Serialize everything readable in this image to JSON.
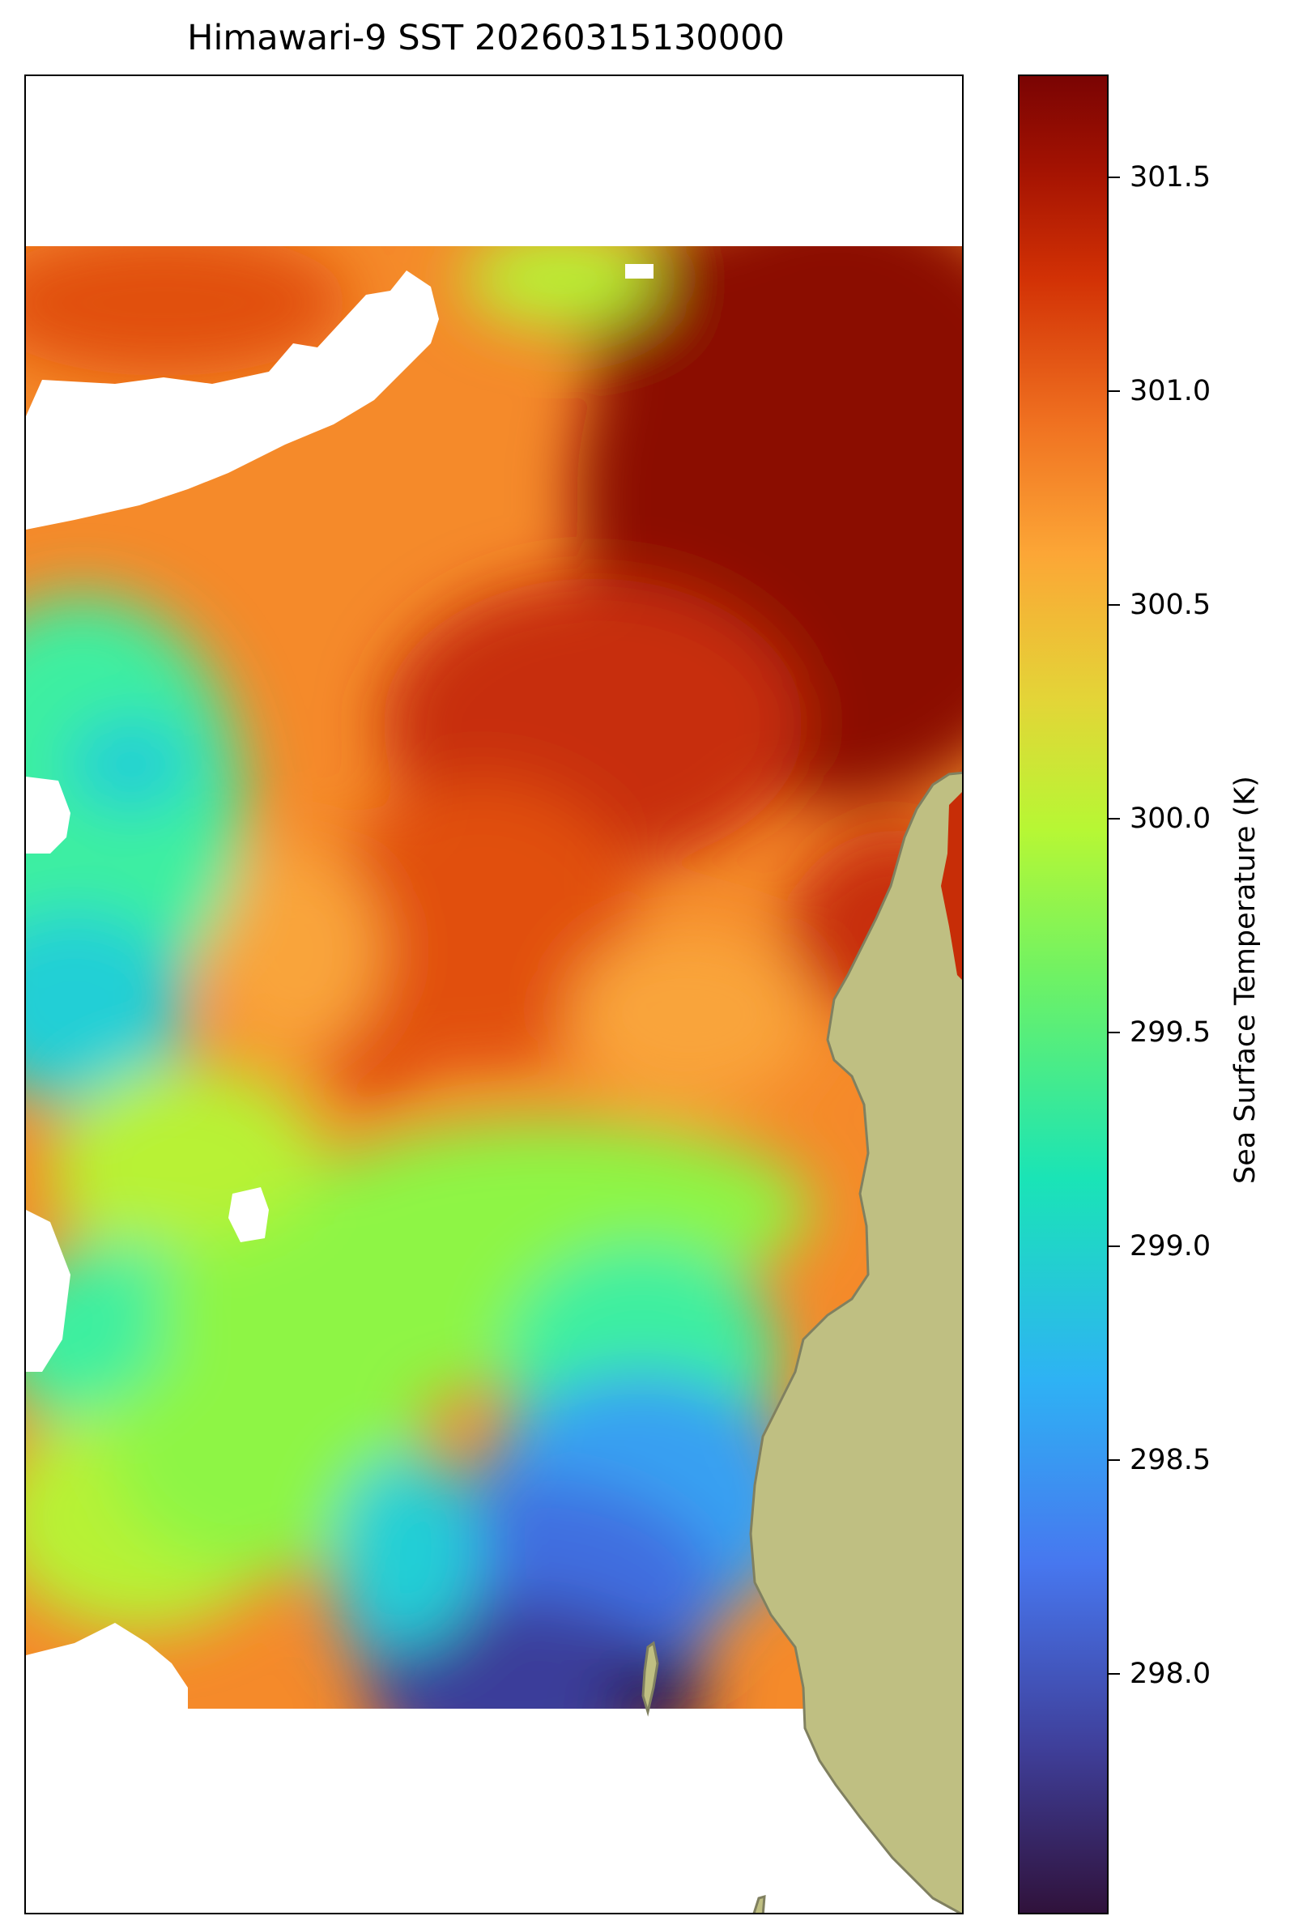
{
  "title": "Himawari-9 SST 20260315130000",
  "colorbar": {
    "label": "Sea Surface Temperature (K)",
    "ticks": [
      "301.5",
      "301.0",
      "300.5",
      "300.0",
      "299.5",
      "299.0",
      "298.5",
      "298.0"
    ],
    "colormap": "turbo",
    "range": [
      297.55,
      301.75
    ]
  },
  "map": {
    "land_color": "#bfbf82",
    "coast_color": "#808060",
    "nodata_color": "#ffffff",
    "palette": {
      "deep_red": "#8b0a03",
      "red": "#c72d07",
      "red_orange": "#e14f10",
      "orange": "#f58a2a",
      "light_orange": "#f9a43b",
      "yellow": "#e6d33c",
      "yellow_green": "#b8f236",
      "green": "#8ef545",
      "aqua_green": "#3cefa0",
      "cyan": "#21cfd6",
      "blue": "#39a0f2",
      "royal_blue": "#416ee0",
      "indigo": "#3a3d9a",
      "dark": "#2e1650"
    }
  }
}
